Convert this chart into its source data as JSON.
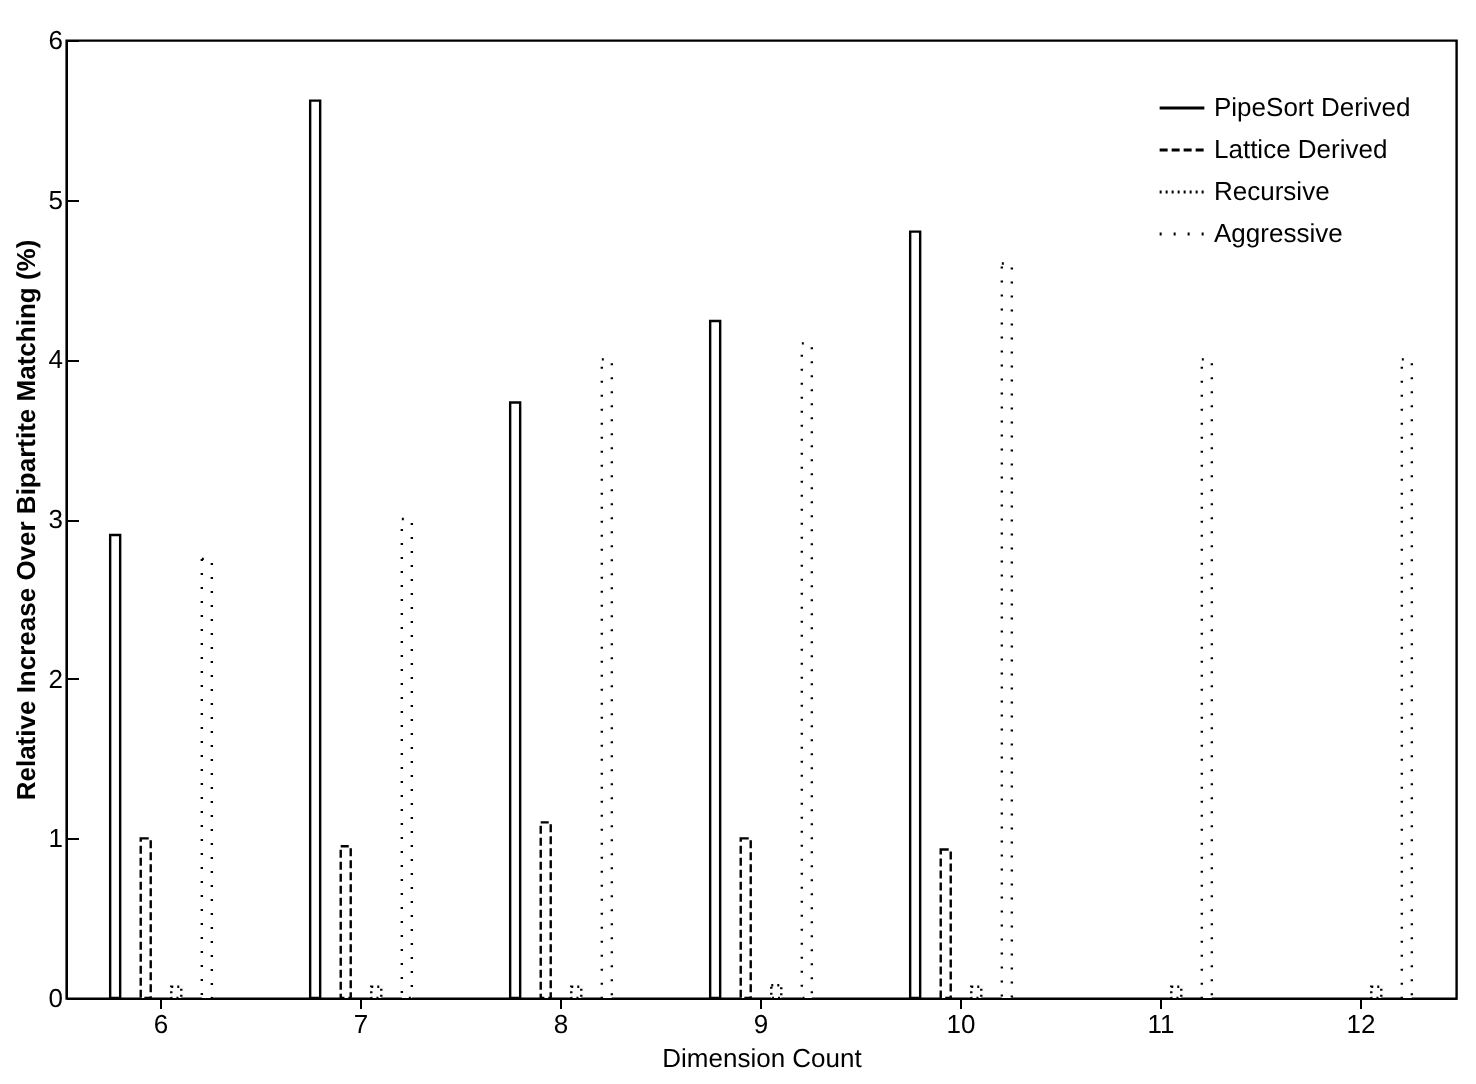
{
  "chart_data": {
    "type": "bar",
    "xlabel": "Dimension Count",
    "ylabel": "Relative Increase Over Bipartite Matching (%)",
    "categories": [
      "6",
      "7",
      "8",
      "9",
      "10",
      "11",
      "12"
    ],
    "series": [
      {
        "name": "PipeSort Derived",
        "color": "#000000",
        "line_style": "solid",
        "values": [
          2.9,
          5.62,
          3.73,
          4.24,
          4.8,
          null,
          null
        ]
      },
      {
        "name": "Lattice Derived",
        "color": "#000000",
        "line_style": "dashed",
        "values": [
          1.0,
          0.95,
          1.1,
          1.0,
          0.93,
          null,
          null
        ]
      },
      {
        "name": "Recursive",
        "color": "#000000",
        "line_style": "dotted",
        "values": [
          0.07,
          0.07,
          0.07,
          0.08,
          0.07,
          0.07,
          0.07
        ]
      },
      {
        "name": "Aggressive",
        "color": "#000000",
        "line_style": "dotted",
        "values": [
          2.75,
          3.0,
          4.0,
          4.1,
          4.6,
          4.0,
          4.0
        ]
      }
    ],
    "ylim": [
      0,
      6
    ],
    "yticks": [
      0,
      1,
      2,
      3,
      4,
      5,
      6
    ],
    "grid": false,
    "legend": "top right"
  }
}
